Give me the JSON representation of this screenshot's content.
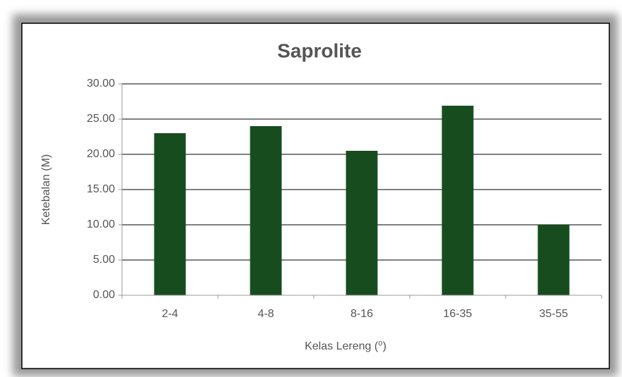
{
  "chart_data": {
    "type": "bar",
    "title": "Saprolite",
    "x_label": "Kelas Lereng (⁰)",
    "y_label": "Ketebalan (M)",
    "categories": [
      "2-4",
      "4-8",
      "8-16",
      "16-35",
      "35-55"
    ],
    "values": [
      23,
      24,
      20.5,
      26.9,
      10
    ],
    "color": "#174d1e",
    "ylim": [
      0,
      30
    ],
    "yticks": [
      {
        "value": 0,
        "label": "0.00"
      },
      {
        "value": 5,
        "label": "5.00"
      },
      {
        "value": 10,
        "label": "10.00"
      },
      {
        "value": 15,
        "label": "15.00"
      },
      {
        "value": 20,
        "label": "20.00"
      },
      {
        "value": 25,
        "label": "25.00"
      },
      {
        "value": 30,
        "label": "30.00"
      }
    ],
    "grid": true
  }
}
